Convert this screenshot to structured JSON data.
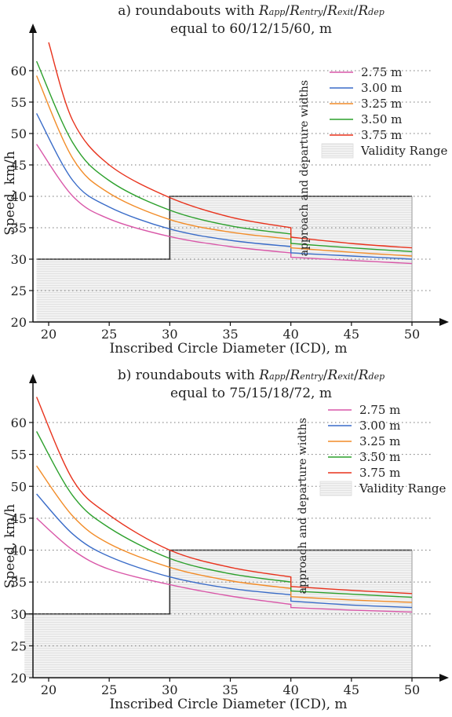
{
  "chart_data": [
    {
      "type": "line",
      "title_prefix": "a) roundabouts with",
      "title_symbols": [
        "R",
        "app",
        "R",
        "entry",
        "R",
        "exit",
        "R",
        "dep"
      ],
      "title_line2": "equal to 60/12/15/60, m",
      "xlabel": "Inscribed Circle Diameter (ICD), m",
      "ylabel": "Speed, km/h",
      "xlim": [
        18,
        52
      ],
      "ylim": [
        20,
        65
      ],
      "xticks": [
        20,
        25,
        30,
        35,
        40,
        45,
        50
      ],
      "yticks": [
        20,
        25,
        30,
        35,
        40,
        45,
        50,
        55,
        60
      ],
      "legend_title": "approach and departure widths",
      "legend_position": "top-right",
      "validity_label": "Validity Range",
      "validity_range": {
        "polygon": [
          [
            19,
            30
          ],
          [
            30,
            30
          ],
          [
            30,
            40
          ],
          [
            50,
            40
          ],
          [
            50,
            20
          ],
          [
            19,
            20
          ]
        ]
      },
      "series": [
        {
          "name": "2.75 m",
          "color": "#d957a8",
          "x": [
            19,
            22,
            25,
            30,
            35,
            40,
            40,
            45,
            50
          ],
          "y": [
            48.3,
            40.0,
            36.4,
            33.6,
            32.0,
            31.0,
            30.3,
            29.8,
            29.3
          ]
        },
        {
          "name": "3.00 m",
          "color": "#3a6cc8",
          "x": [
            19,
            22,
            25,
            30,
            35,
            40,
            40,
            45,
            50
          ],
          "y": [
            53.2,
            42.5,
            38.3,
            34.8,
            33.0,
            32.0,
            31.0,
            30.5,
            30.0
          ]
        },
        {
          "name": "3.25 m",
          "color": "#f28c28",
          "x": [
            19,
            22,
            25,
            30,
            35,
            40,
            40,
            45,
            50
          ],
          "y": [
            59.2,
            46.0,
            40.5,
            36.3,
            34.3,
            33.2,
            31.8,
            31.1,
            30.5
          ]
        },
        {
          "name": "3.50 m",
          "color": "#2ca02c",
          "x": [
            19,
            22,
            25,
            30,
            35,
            40,
            40,
            45,
            50
          ],
          "y": [
            61.5,
            48.5,
            42.5,
            37.8,
            35.3,
            34.0,
            32.5,
            31.8,
            31.2
          ]
        },
        {
          "name": "3.75 m",
          "color": "#e8321c",
          "x": [
            20,
            22,
            25,
            30,
            35,
            40,
            40,
            45,
            50
          ],
          "y": [
            64.5,
            52.0,
            45.0,
            39.8,
            36.7,
            35.0,
            33.5,
            32.5,
            31.8
          ]
        }
      ]
    },
    {
      "type": "line",
      "title_prefix": "b) roundabouts with",
      "title_symbols": [
        "R",
        "app",
        "R",
        "entry",
        "R",
        "exit",
        "R",
        "dep"
      ],
      "title_line2": "equal to 75/15/18/72, m",
      "xlabel": "Inscribed Circle Diameter (ICD), m",
      "ylabel": "Speed, km/h",
      "xlim": [
        18,
        52
      ],
      "ylim": [
        20,
        65
      ],
      "xticks": [
        20,
        25,
        30,
        35,
        40,
        45,
        50
      ],
      "yticks": [
        20,
        25,
        30,
        35,
        40,
        45,
        50,
        55,
        60
      ],
      "legend_title": "approach and departure widths",
      "legend_position": "top-right",
      "validity_label": "Validity Range",
      "validity_range": {
        "polygon": [
          [
            18,
            30
          ],
          [
            30,
            30
          ],
          [
            30,
            40
          ],
          [
            50,
            40
          ],
          [
            50,
            20
          ],
          [
            18,
            20
          ]
        ]
      },
      "series": [
        {
          "name": "2.75 m",
          "color": "#d957a8",
          "x": [
            19,
            22,
            25,
            30,
            35,
            40,
            40,
            45,
            50
          ],
          "y": [
            45.0,
            40.0,
            37.0,
            34.6,
            32.8,
            31.5,
            31.0,
            30.6,
            30.3
          ]
        },
        {
          "name": "3.00 m",
          "color": "#3a6cc8",
          "x": [
            19,
            22,
            25,
            30,
            35,
            40,
            40,
            45,
            50
          ],
          "y": [
            48.8,
            42.5,
            39.0,
            35.8,
            34.0,
            33.0,
            32.0,
            31.4,
            31.0
          ]
        },
        {
          "name": "3.25 m",
          "color": "#f28c28",
          "x": [
            19,
            22,
            25,
            30,
            35,
            40,
            40,
            45,
            50
          ],
          "y": [
            53.2,
            45.3,
            41.0,
            37.3,
            35.2,
            34.0,
            32.7,
            32.2,
            31.8
          ]
        },
        {
          "name": "3.50 m",
          "color": "#2ca02c",
          "x": [
            19,
            22,
            25,
            30,
            35,
            40,
            40,
            45,
            50
          ],
          "y": [
            58.6,
            48.5,
            43.5,
            38.7,
            36.3,
            35.0,
            33.6,
            33.1,
            32.6
          ]
        },
        {
          "name": "3.75 m",
          "color": "#e8321c",
          "x": [
            19,
            22,
            25,
            30,
            35,
            40,
            40,
            45,
            50
          ],
          "y": [
            64.0,
            51.0,
            45.5,
            40.0,
            37.3,
            35.8,
            34.3,
            33.7,
            33.2
          ]
        }
      ]
    }
  ]
}
